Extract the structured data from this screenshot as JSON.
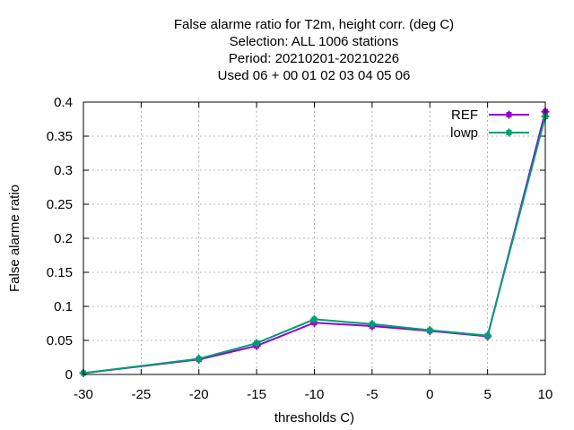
{
  "chart_data": {
    "type": "line",
    "title_lines": [
      "False alarme ratio  for T2m, height corr. (deg C)",
      "Selection: ALL   1006 stations",
      "Period: 20210201-20210226",
      "Used  06  + 00 01 02 03 04 05 06"
    ],
    "xlabel": "thresholds C)",
    "ylabel": "False alarme ratio",
    "xlim": [
      -30,
      10
    ],
    "ylim": [
      0,
      0.4
    ],
    "xticks": [
      -30,
      -25,
      -20,
      -15,
      -10,
      -5,
      0,
      5,
      10
    ],
    "yticks": [
      0,
      0.05,
      0.1,
      0.15,
      0.2,
      0.25,
      0.3,
      0.35,
      0.4
    ],
    "xtick_labels": [
      "-30",
      "-25",
      "-20",
      "-15",
      "-10",
      "-5",
      "0",
      "5",
      "10"
    ],
    "ytick_labels": [
      "0",
      "0.05",
      "0.1",
      "0.15",
      "0.2",
      "0.25",
      "0.3",
      "0.35",
      "0.4"
    ],
    "grid": true,
    "legend_position": "top-right",
    "x": [
      -30,
      -20,
      -15,
      -10,
      -5,
      0,
      5,
      10
    ],
    "series": [
      {
        "name": "REF",
        "color": "#9400d3",
        "values": [
          0.002,
          0.022,
          0.042,
          0.076,
          0.071,
          0.064,
          0.056,
          0.386
        ]
      },
      {
        "name": "lowp",
        "color": "#009e73",
        "values": [
          0.002,
          0.023,
          0.046,
          0.081,
          0.074,
          0.065,
          0.057,
          0.379
        ]
      }
    ]
  }
}
